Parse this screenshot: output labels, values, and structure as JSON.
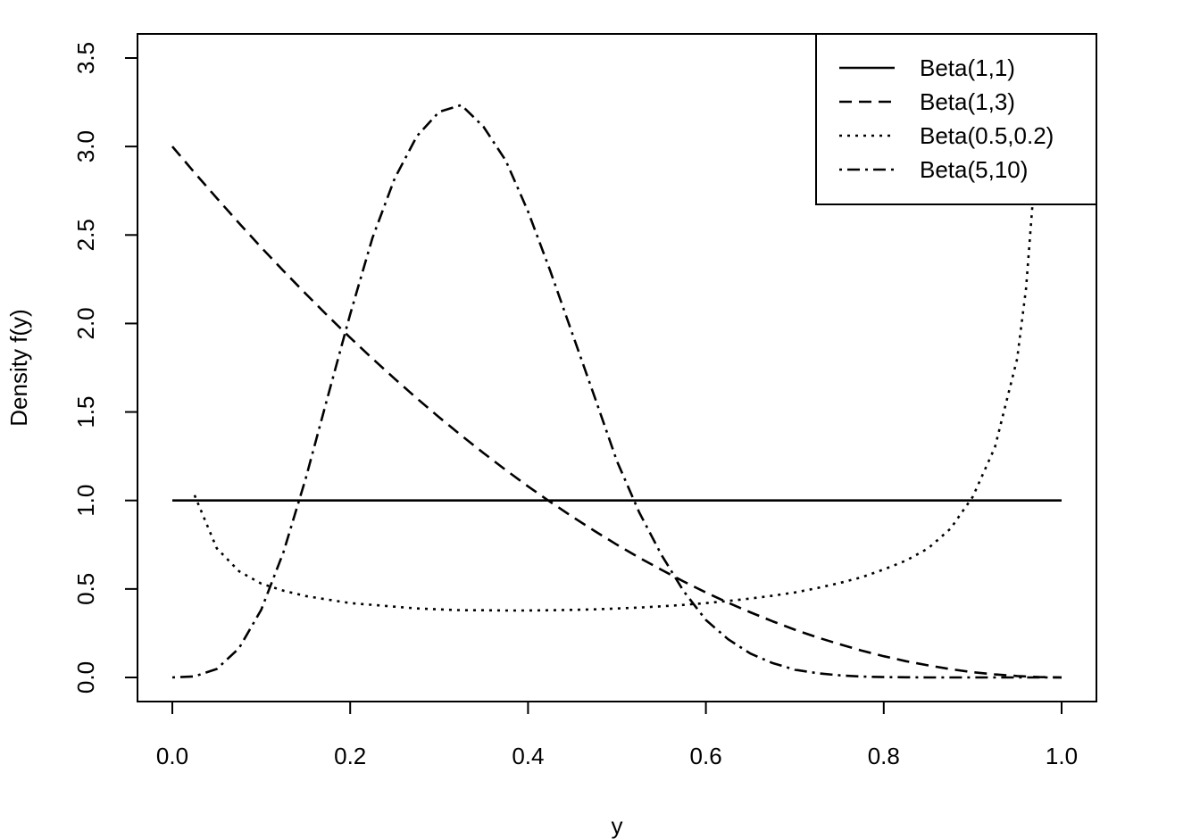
{
  "chart_data": {
    "type": "line",
    "title": "",
    "xlabel": "y",
    "ylabel": "Density f(y)",
    "xlim": [
      0.0,
      1.0
    ],
    "ylim": [
      0.0,
      3.5
    ],
    "xticks": [
      "0.0",
      "0.2",
      "0.4",
      "0.6",
      "0.8",
      "1.0"
    ],
    "yticks": [
      "0.0",
      "0.5",
      "1.0",
      "1.5",
      "2.0",
      "2.5",
      "3.0",
      "3.5"
    ],
    "grid": false,
    "legend_position": "top-right",
    "series": [
      {
        "name": "Beta(1,1)",
        "line_style": "solid",
        "x": [
          0.0,
          0.025,
          0.05,
          0.075,
          0.1,
          0.125,
          0.15,
          0.175,
          0.2,
          0.225,
          0.25,
          0.275,
          0.3,
          0.325,
          0.35,
          0.375,
          0.4,
          0.425,
          0.45,
          0.475,
          0.5,
          0.525,
          0.55,
          0.575,
          0.6,
          0.625,
          0.65,
          0.675,
          0.7,
          0.725,
          0.75,
          0.775,
          0.8,
          0.825,
          0.85,
          0.875,
          0.9,
          0.925,
          0.95,
          0.975,
          1.0
        ],
        "y": [
          1,
          1,
          1,
          1,
          1,
          1,
          1,
          1,
          1,
          1,
          1,
          1,
          1,
          1,
          1,
          1,
          1,
          1,
          1,
          1,
          1,
          1,
          1,
          1,
          1,
          1,
          1,
          1,
          1,
          1,
          1,
          1,
          1,
          1,
          1,
          1,
          1,
          1,
          1,
          1,
          1
        ]
      },
      {
        "name": "Beta(1,3)",
        "line_style": "dashed",
        "x": [
          0.0,
          0.025,
          0.05,
          0.075,
          0.1,
          0.125,
          0.15,
          0.175,
          0.2,
          0.225,
          0.25,
          0.275,
          0.3,
          0.325,
          0.35,
          0.375,
          0.4,
          0.425,
          0.45,
          0.475,
          0.5,
          0.525,
          0.55,
          0.575,
          0.6,
          0.625,
          0.65,
          0.675,
          0.7,
          0.725,
          0.75,
          0.775,
          0.8,
          0.825,
          0.85,
          0.875,
          0.9,
          0.925,
          0.95,
          0.975,
          1.0
        ],
        "y": [
          3.0,
          2.852,
          2.708,
          2.567,
          2.43,
          2.297,
          2.168,
          2.042,
          1.92,
          1.802,
          1.688,
          1.577,
          1.47,
          1.367,
          1.268,
          1.172,
          1.08,
          0.992,
          0.908,
          0.827,
          0.75,
          0.677,
          0.608,
          0.542,
          0.48,
          0.422,
          0.368,
          0.317,
          0.27,
          0.227,
          0.188,
          0.152,
          0.12,
          0.092,
          0.068,
          0.047,
          0.03,
          0.017,
          0.008,
          0.002,
          0.0
        ]
      },
      {
        "name": "Beta(0.5,0.2)",
        "line_style": "dotted",
        "x": [
          0.025,
          0.05,
          0.075,
          0.1,
          0.125,
          0.15,
          0.175,
          0.2,
          0.225,
          0.25,
          0.275,
          0.3,
          0.325,
          0.35,
          0.375,
          0.4,
          0.425,
          0.45,
          0.475,
          0.5,
          0.525,
          0.55,
          0.575,
          0.6,
          0.625,
          0.65,
          0.675,
          0.7,
          0.725,
          0.75,
          0.775,
          0.8,
          0.825,
          0.85,
          0.875,
          0.9,
          0.925,
          0.95,
          0.96,
          0.97
        ],
        "y": [
          1.03,
          0.73,
          0.6,
          0.53,
          0.49,
          0.46,
          0.44,
          0.42,
          0.41,
          0.4,
          0.39,
          0.385,
          0.38,
          0.38,
          0.378,
          0.378,
          0.38,
          0.382,
          0.385,
          0.39,
          0.395,
          0.402,
          0.41,
          0.42,
          0.432,
          0.446,
          0.462,
          0.48,
          0.505,
          0.533,
          0.566,
          0.61,
          0.66,
          0.73,
          0.84,
          1.02,
          1.3,
          1.8,
          2.2,
          2.85
        ]
      },
      {
        "name": "Beta(5,10)",
        "line_style": "dotdash",
        "x": [
          0.0,
          0.025,
          0.05,
          0.075,
          0.1,
          0.125,
          0.15,
          0.175,
          0.2,
          0.225,
          0.25,
          0.275,
          0.3,
          0.325,
          0.35,
          0.375,
          0.4,
          0.425,
          0.45,
          0.475,
          0.5,
          0.525,
          0.55,
          0.575,
          0.6,
          0.625,
          0.65,
          0.675,
          0.7,
          0.725,
          0.75,
          0.775,
          0.8,
          0.825,
          0.85,
          0.875,
          0.9,
          0.925,
          0.95,
          0.975,
          1.0
        ],
        "y": [
          0.0,
          0.006,
          0.048,
          0.165,
          0.383,
          0.708,
          1.124,
          1.59,
          2.052,
          2.483,
          2.819,
          3.058,
          3.196,
          3.234,
          3.111,
          2.92,
          2.633,
          2.297,
          1.94,
          1.583,
          1.222,
          0.933,
          0.693,
          0.487,
          0.325,
          0.216,
          0.135,
          0.081,
          0.044,
          0.024,
          0.012,
          0.005,
          0.002,
          0.001,
          0.0,
          0.0,
          0.0,
          0.0,
          0.0,
          0.0,
          0.0
        ]
      }
    ]
  }
}
